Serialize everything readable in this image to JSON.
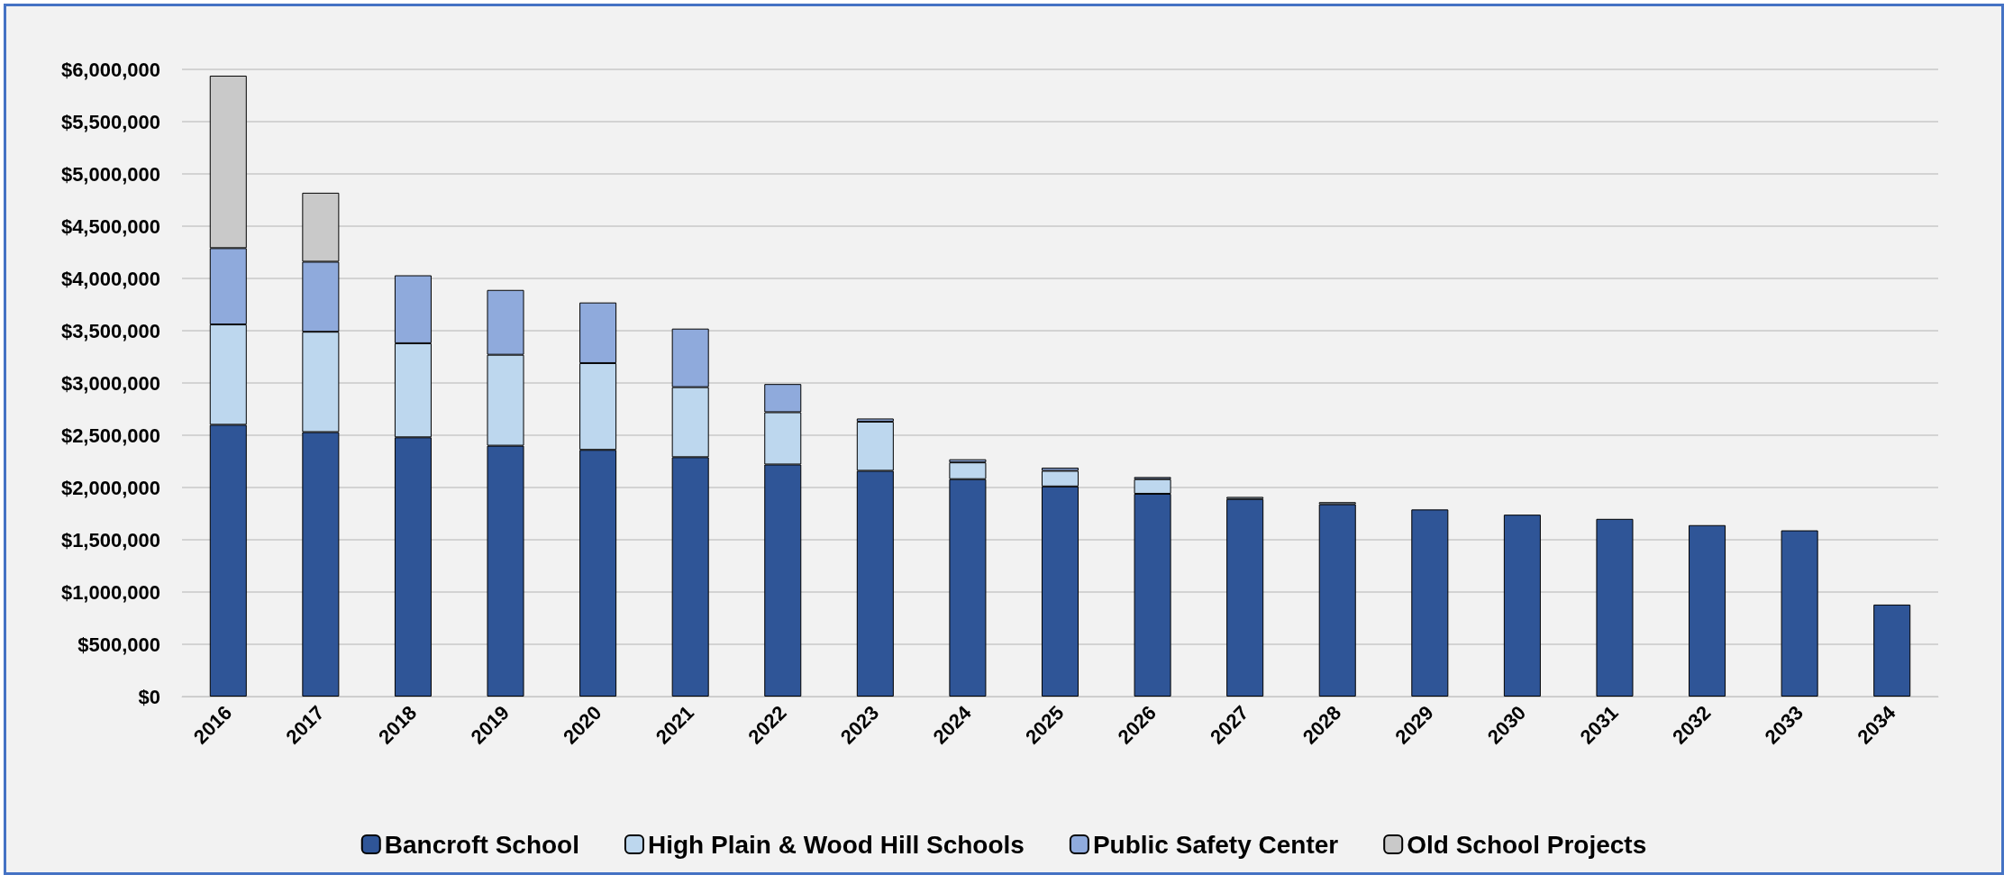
{
  "chart_data": {
    "type": "bar",
    "stacked": true,
    "legend": "bottom",
    "grid": "y",
    "categories": [
      "2016",
      "2017",
      "2018",
      "2019",
      "2020",
      "2021",
      "2022",
      "2023",
      "2024",
      "2025",
      "2026",
      "2027",
      "2028",
      "2029",
      "2030",
      "2031",
      "2032",
      "2033",
      "2034"
    ],
    "series": [
      {
        "name": "Bancroft School",
        "color": "#2f5597",
        "values": [
          2600000,
          2530000,
          2480000,
          2400000,
          2360000,
          2290000,
          2220000,
          2160000,
          2080000,
          2010000,
          1940000,
          1890000,
          1840000,
          1790000,
          1740000,
          1700000,
          1640000,
          1590000,
          880000
        ]
      },
      {
        "name": "High Plain & Wood Hill Schools",
        "color": "#bdd7ee",
        "values": [
          960000,
          960000,
          900000,
          870000,
          830000,
          670000,
          500000,
          470000,
          160000,
          150000,
          140000,
          20000,
          20000,
          null,
          null,
          null,
          null,
          null,
          null
        ]
      },
      {
        "name": "Public Safety Center",
        "color": "#8faadc",
        "values": [
          730000,
          670000,
          650000,
          620000,
          580000,
          560000,
          270000,
          30000,
          30000,
          30000,
          20000,
          null,
          null,
          null,
          null,
          null,
          null,
          null,
          null
        ]
      },
      {
        "name": "Old School Projects",
        "color": "#c9c9c9",
        "values": [
          1650000,
          660000,
          null,
          null,
          null,
          null,
          null,
          null,
          null,
          null,
          null,
          null,
          null,
          null,
          null,
          null,
          null,
          null,
          null
        ]
      }
    ],
    "ylim": [
      0,
      6000000
    ],
    "yticks": [
      {
        "value": 0,
        "label": "$0"
      },
      {
        "value": 500000,
        "label": "$500,000"
      },
      {
        "value": 1000000,
        "label": "$1,000,000"
      },
      {
        "value": 1500000,
        "label": "$1,500,000"
      },
      {
        "value": 2000000,
        "label": "$2,000,000"
      },
      {
        "value": 2500000,
        "label": "$2,500,000"
      },
      {
        "value": 3000000,
        "label": "$3,000,000"
      },
      {
        "value": 3500000,
        "label": "$3,500,000"
      },
      {
        "value": 4000000,
        "label": "$4,000,000"
      },
      {
        "value": 4500000,
        "label": "$4,500,000"
      },
      {
        "value": 5000000,
        "label": "$5,000,000"
      },
      {
        "value": 5500000,
        "label": "$5,500,000"
      },
      {
        "value": 6000000,
        "label": "$6,000,000"
      }
    ]
  }
}
